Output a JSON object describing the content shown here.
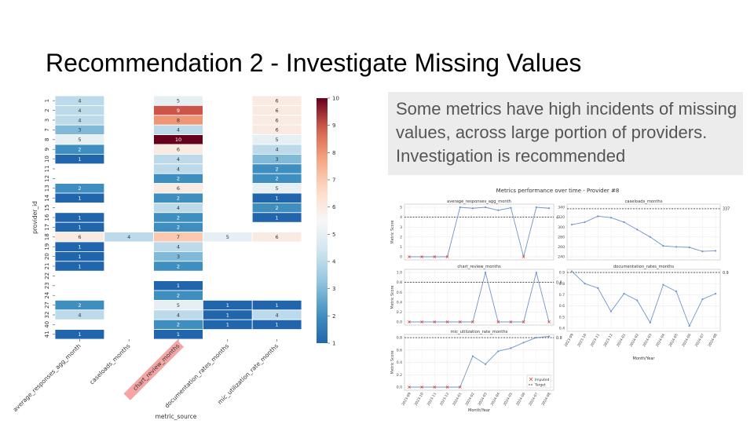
{
  "slide": {
    "title": "Recommendation 2 - Investigate Missing Values",
    "callout": "Some metrics have high incidents of missing values, across large portion of providers. Investigation is recommended"
  },
  "colors": {
    "callout_bg": "#ececec",
    "callout_text": "#555555",
    "highlight_label": "#f4a6a6",
    "line": "#6f95c8",
    "imputed": "#e04040"
  },
  "chart_data": [
    {
      "type": "heatmap",
      "xlabel": "metric_source",
      "ylabel": "provider_id",
      "columns": [
        "average_responses_agg_month",
        "caseloads_months",
        "chart_review_months",
        "documentation_rates_months",
        "mic_utilization_rate_months"
      ],
      "highlighted_column": "chart_review_months",
      "rows": [
        "1",
        "2",
        "3",
        "7",
        "8",
        "9",
        "10",
        "11",
        "12",
        "13",
        "14",
        "15",
        "16",
        "17",
        "18",
        "19",
        "20",
        "21",
        "22",
        "23",
        "24",
        "27",
        "32",
        "40",
        "41"
      ],
      "values": [
        [
          4,
          null,
          5,
          null,
          6
        ],
        [
          4,
          null,
          9,
          null,
          6
        ],
        [
          4,
          null,
          8,
          null,
          6
        ],
        [
          3,
          null,
          4,
          null,
          6
        ],
        [
          5,
          null,
          10,
          null,
          5
        ],
        [
          2,
          null,
          6,
          null,
          4
        ],
        [
          1,
          null,
          4,
          null,
          3
        ],
        [
          null,
          null,
          4,
          null,
          2
        ],
        [
          null,
          null,
          2,
          null,
          2
        ],
        [
          2,
          null,
          6,
          null,
          5
        ],
        [
          1,
          null,
          2,
          null,
          1
        ],
        [
          null,
          null,
          4,
          null,
          2
        ],
        [
          1,
          null,
          2,
          null,
          1
        ],
        [
          1,
          null,
          2,
          null,
          null
        ],
        [
          6,
          4,
          7,
          5,
          6
        ],
        [
          1,
          null,
          4,
          null,
          null
        ],
        [
          1,
          null,
          3,
          null,
          null
        ],
        [
          1,
          null,
          2,
          null,
          null
        ],
        [
          null,
          null,
          null,
          null,
          null
        ],
        [
          null,
          null,
          1,
          null,
          null
        ],
        [
          null,
          null,
          2,
          null,
          null
        ],
        [
          2,
          null,
          5,
          1,
          1
        ],
        [
          4,
          null,
          4,
          1,
          4
        ],
        [
          null,
          null,
          2,
          1,
          1
        ],
        [
          1,
          null,
          1,
          null,
          null
        ]
      ],
      "colorbar_ticks": [
        1,
        2,
        3,
        4,
        5,
        6,
        7,
        8,
        9,
        10
      ],
      "vmin": 1,
      "vmax": 10
    },
    {
      "type": "line",
      "title": "Metrics performance over time - Provider #8",
      "x": [
        "2023-09",
        "2023-10",
        "2023-11",
        "2023-12",
        "2024-01",
        "2024-02",
        "2024-03",
        "2024-04",
        "2024-05",
        "2024-06",
        "2024-07",
        "2024-08"
      ],
      "x_label": "Month/Year",
      "legend": [
        "Imputed",
        "Target"
      ],
      "panels": [
        {
          "title": "average_responses_agg_month",
          "ylabel": "Metric Score",
          "values": [
            0,
            0,
            0,
            0,
            5,
            4.9,
            5,
            4.7,
            4.95,
            0,
            5,
            4.9
          ],
          "imputed": [
            0,
            1,
            2,
            3,
            9
          ],
          "target": 4,
          "target_label": "4",
          "ylim": [
            0,
            5
          ],
          "yticks": [
            "0",
            "1",
            "2",
            "3",
            "4",
            "5"
          ]
        },
        {
          "title": "caseloads_months",
          "ylabel": "",
          "values": [
            305,
            310,
            322,
            319,
            310,
            295,
            280,
            262,
            260,
            259,
            251,
            252
          ],
          "imputed": [],
          "target": 337,
          "target_label": "337",
          "ylim": [
            240,
            340
          ],
          "yticks": [
            "240",
            "260",
            "280",
            "300",
            "320",
            "340"
          ]
        },
        {
          "title": "chart_review_months",
          "ylabel": "Metric Score",
          "values": [
            0,
            0,
            0,
            0,
            0,
            0,
            1,
            0,
            0,
            0,
            1,
            0
          ],
          "imputed": [
            0,
            1,
            2,
            3,
            4,
            5,
            7,
            8,
            9,
            11
          ],
          "target": 0.8,
          "target_label": "0.8",
          "ylim": [
            0,
            1
          ],
          "yticks": [
            "0.0",
            "0.2",
            "0.4",
            "0.6",
            "0.8",
            "1.0"
          ]
        },
        {
          "title": "documentation_rates_months",
          "ylabel": "",
          "values": [
            0.91,
            0.8,
            0.76,
            0.55,
            0.71,
            0.65,
            0.45,
            0.79,
            0.73,
            0.42,
            0.66,
            0.71
          ],
          "imputed": [],
          "target": 0.9,
          "target_label": "0.9",
          "ylim": [
            0.4,
            0.9
          ],
          "yticks": [
            "0.4",
            "0.5",
            "0.6",
            "0.7",
            "0.8",
            "0.9"
          ]
        },
        {
          "title": "mic_utilization_rate_months",
          "ylabel": "Metric Score",
          "values": [
            0,
            0,
            0,
            0,
            0,
            0.5,
            0.37,
            0.58,
            0.63,
            0.72,
            0.8,
            0.82
          ],
          "imputed": [
            0,
            1,
            2,
            3,
            4
          ],
          "target": 0.8,
          "target_label": "0.8",
          "ylim": [
            0,
            0.8
          ],
          "yticks": [
            "0.0",
            "0.2",
            "0.4",
            "0.6",
            "0.8"
          ]
        }
      ]
    }
  ]
}
